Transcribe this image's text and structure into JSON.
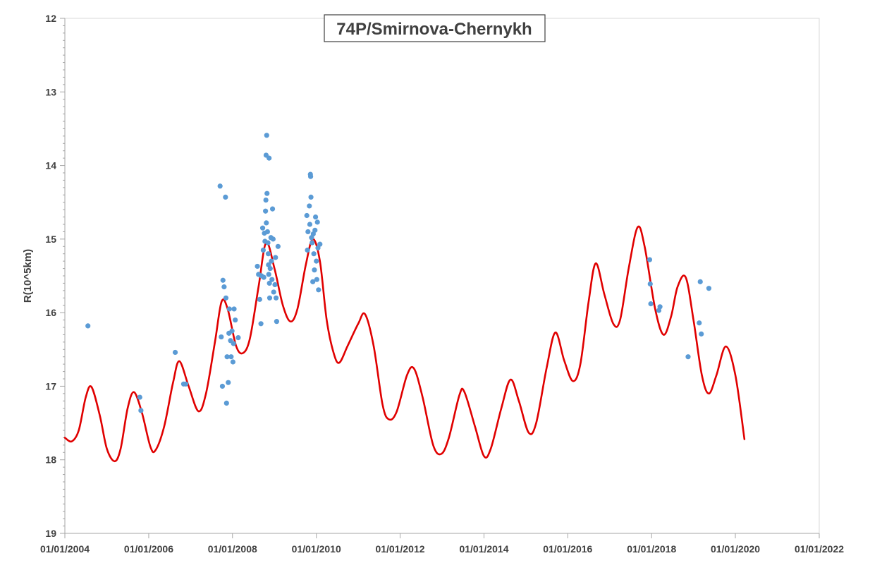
{
  "chart_data": {
    "type": "scatter",
    "title": "74P/Smirnova-Chernykh",
    "xlabel": "",
    "ylabel": "R(10^5km)",
    "x_axis": {
      "type": "date",
      "range": [
        "2004-01-01",
        "2022-01-01"
      ],
      "tick_labels": [
        "01/01/2004",
        "01/01/2006",
        "01/01/2008",
        "01/01/2010",
        "01/01/2012",
        "01/01/2014",
        "01/01/2016",
        "01/01/2018",
        "01/01/2020",
        "01/01/2022"
      ]
    },
    "y_axis": {
      "range": [
        12,
        19
      ],
      "inverted": true,
      "tick_labels": [
        "12",
        "13",
        "14",
        "15",
        "16",
        "17",
        "18",
        "19"
      ]
    },
    "grid": false,
    "legend": "none",
    "colors": {
      "curve": "#e00000",
      "points": "#5b9bd5",
      "axis": "#a6a6a6",
      "text": "#404040"
    },
    "series": [
      {
        "kind": "line",
        "points": [
          [
            "2004-01-01",
            17.7
          ],
          [
            "2004-03-01",
            17.75
          ],
          [
            "2004-05-01",
            17.6
          ],
          [
            "2004-07-01",
            17.15
          ],
          [
            "2004-08-20",
            17.01
          ],
          [
            "2004-11-01",
            17.4
          ],
          [
            "2005-01-01",
            17.85
          ],
          [
            "2005-03-10",
            18.02
          ],
          [
            "2005-05-01",
            17.85
          ],
          [
            "2005-07-01",
            17.3
          ],
          [
            "2005-08-25",
            17.08
          ],
          [
            "2005-11-01",
            17.35
          ],
          [
            "2006-01-15",
            17.82
          ],
          [
            "2006-03-01",
            17.87
          ],
          [
            "2006-05-15",
            17.55
          ],
          [
            "2006-08-01",
            16.95
          ],
          [
            "2006-09-25",
            16.66
          ],
          [
            "2006-12-15",
            17.0
          ],
          [
            "2007-03-10",
            17.34
          ],
          [
            "2007-05-15",
            17.1
          ],
          [
            "2007-08-01",
            16.4
          ],
          [
            "2007-09-28",
            15.85
          ],
          [
            "2007-11-20",
            15.95
          ],
          [
            "2008-02-01",
            16.45
          ],
          [
            "2008-04-01",
            16.55
          ],
          [
            "2008-06-01",
            16.35
          ],
          [
            "2008-08-15",
            15.65
          ],
          [
            "2008-10-20",
            15.05
          ],
          [
            "2009-01-01",
            15.4
          ],
          [
            "2009-03-15",
            15.9
          ],
          [
            "2009-05-20",
            16.12
          ],
          [
            "2009-07-20",
            15.95
          ],
          [
            "2009-10-01",
            15.35
          ],
          [
            "2009-12-01",
            15.0
          ],
          [
            "2010-02-01",
            15.3
          ],
          [
            "2010-04-01",
            16.1
          ],
          [
            "2010-06-01",
            16.55
          ],
          [
            "2010-07-20",
            16.68
          ],
          [
            "2010-10-01",
            16.45
          ],
          [
            "2011-01-01",
            16.15
          ],
          [
            "2011-03-01",
            16.02
          ],
          [
            "2011-05-15",
            16.45
          ],
          [
            "2011-08-01",
            17.25
          ],
          [
            "2011-09-25",
            17.45
          ],
          [
            "2011-12-01",
            17.35
          ],
          [
            "2012-03-01",
            16.85
          ],
          [
            "2012-05-01",
            16.76
          ],
          [
            "2012-07-15",
            17.15
          ],
          [
            "2012-10-15",
            17.8
          ],
          [
            "2012-12-25",
            17.92
          ],
          [
            "2013-03-01",
            17.7
          ],
          [
            "2013-06-01",
            17.12
          ],
          [
            "2013-07-15",
            17.08
          ],
          [
            "2013-10-15",
            17.55
          ],
          [
            "2014-01-01",
            17.95
          ],
          [
            "2014-03-01",
            17.85
          ],
          [
            "2014-06-01",
            17.3
          ],
          [
            "2014-08-20",
            16.91
          ],
          [
            "2014-11-01",
            17.2
          ],
          [
            "2015-01-25",
            17.63
          ],
          [
            "2015-04-01",
            17.5
          ],
          [
            "2015-07-01",
            16.75
          ],
          [
            "2015-09-15",
            16.27
          ],
          [
            "2015-12-01",
            16.65
          ],
          [
            "2016-02-15",
            16.93
          ],
          [
            "2016-04-20",
            16.7
          ],
          [
            "2016-07-01",
            15.85
          ],
          [
            "2016-09-01",
            15.33
          ],
          [
            "2016-11-15",
            15.75
          ],
          [
            "2017-02-01",
            16.15
          ],
          [
            "2017-04-01",
            16.1
          ],
          [
            "2017-06-15",
            15.4
          ],
          [
            "2017-09-01",
            14.84
          ],
          [
            "2017-11-01",
            15.1
          ],
          [
            "2018-02-01",
            15.95
          ],
          [
            "2018-04-15",
            16.3
          ],
          [
            "2018-06-20",
            16.05
          ],
          [
            "2018-08-15",
            15.65
          ],
          [
            "2018-10-25",
            15.52
          ],
          [
            "2019-01-01",
            16.1
          ],
          [
            "2019-03-15",
            16.85
          ],
          [
            "2019-05-15",
            17.1
          ],
          [
            "2019-07-20",
            16.85
          ],
          [
            "2019-10-10",
            16.46
          ],
          [
            "2020-01-01",
            16.85
          ],
          [
            "2020-03-20",
            17.72
          ]
        ]
      },
      {
        "kind": "scatter",
        "points": [
          [
            "2004-07-20",
            16.18
          ],
          [
            "2005-10-15",
            17.15
          ],
          [
            "2005-10-25",
            17.33
          ],
          [
            "2006-08-20",
            16.54
          ],
          [
            "2006-11-01",
            16.97
          ],
          [
            "2006-11-20",
            16.97
          ],
          [
            "2007-09-15",
            14.28
          ],
          [
            "2007-09-25",
            16.33
          ],
          [
            "2007-10-05",
            17.0
          ],
          [
            "2007-10-10",
            15.56
          ],
          [
            "2007-10-20",
            15.65
          ],
          [
            "2007-11-01",
            14.43
          ],
          [
            "2007-11-05",
            15.8
          ],
          [
            "2007-11-10",
            17.23
          ],
          [
            "2007-11-15",
            16.6
          ],
          [
            "2007-11-25",
            16.95
          ],
          [
            "2007-12-01",
            16.28
          ],
          [
            "2007-12-05",
            15.95
          ],
          [
            "2007-12-15",
            16.38
          ],
          [
            "2007-12-20",
            16.6
          ],
          [
            "2007-12-28",
            16.25
          ],
          [
            "2008-01-05",
            16.67
          ],
          [
            "2008-01-10",
            16.42
          ],
          [
            "2008-01-15",
            15.95
          ],
          [
            "2008-01-25",
            16.1
          ],
          [
            "2008-02-20",
            16.34
          ],
          [
            "2008-08-05",
            15.37
          ],
          [
            "2008-08-15",
            15.48
          ],
          [
            "2008-08-25",
            15.82
          ],
          [
            "2008-09-05",
            16.15
          ],
          [
            "2008-09-10",
            15.5
          ],
          [
            "2008-09-20",
            14.85
          ],
          [
            "2008-09-25",
            15.15
          ],
          [
            "2008-09-30",
            15.52
          ],
          [
            "2008-10-05",
            14.92
          ],
          [
            "2008-10-10",
            15.03
          ],
          [
            "2008-10-15",
            14.62
          ],
          [
            "2008-10-18",
            14.47
          ],
          [
            "2008-10-20",
            13.86
          ],
          [
            "2008-10-22",
            14.78
          ],
          [
            "2008-10-25",
            13.59
          ],
          [
            "2008-10-28",
            14.38
          ],
          [
            "2008-11-01",
            14.9
          ],
          [
            "2008-11-05",
            15.05
          ],
          [
            "2008-11-08",
            15.2
          ],
          [
            "2008-11-10",
            15.35
          ],
          [
            "2008-11-12",
            15.48
          ],
          [
            "2008-11-15",
            13.9
          ],
          [
            "2008-11-18",
            15.6
          ],
          [
            "2008-11-20",
            15.8
          ],
          [
            "2008-11-25",
            15.4
          ],
          [
            "2008-12-01",
            14.98
          ],
          [
            "2008-12-05",
            15.3
          ],
          [
            "2008-12-10",
            15.55
          ],
          [
            "2008-12-15",
            14.59
          ],
          [
            "2008-12-20",
            15.0
          ],
          [
            "2008-12-25",
            15.72
          ],
          [
            "2009-01-05",
            15.62
          ],
          [
            "2009-01-10",
            15.25
          ],
          [
            "2009-01-15",
            15.8
          ],
          [
            "2009-01-20",
            16.12
          ],
          [
            "2009-02-01",
            15.1
          ],
          [
            "2009-10-10",
            14.68
          ],
          [
            "2009-10-15",
            15.15
          ],
          [
            "2009-10-20",
            14.9
          ],
          [
            "2009-11-01",
            14.55
          ],
          [
            "2009-11-05",
            14.8
          ],
          [
            "2009-11-10",
            14.12
          ],
          [
            "2009-11-12",
            14.15
          ],
          [
            "2009-11-15",
            14.43
          ],
          [
            "2009-11-20",
            14.98
          ],
          [
            "2009-11-25",
            15.05
          ],
          [
            "2009-12-01",
            15.58
          ],
          [
            "2009-12-05",
            14.93
          ],
          [
            "2009-12-10",
            15.2
          ],
          [
            "2009-12-15",
            15.42
          ],
          [
            "2009-12-20",
            14.88
          ],
          [
            "2009-12-25",
            14.7
          ],
          [
            "2010-01-01",
            15.3
          ],
          [
            "2010-01-05",
            15.55
          ],
          [
            "2010-01-10",
            14.77
          ],
          [
            "2010-01-15",
            15.12
          ],
          [
            "2010-01-20",
            15.69
          ],
          [
            "2010-02-01",
            15.07
          ],
          [
            "2017-12-15",
            15.28
          ],
          [
            "2017-12-20",
            15.61
          ],
          [
            "2017-12-25",
            15.88
          ],
          [
            "2018-03-05",
            15.97
          ],
          [
            "2018-03-15",
            15.92
          ],
          [
            "2018-11-15",
            16.6
          ],
          [
            "2019-02-20",
            16.14
          ],
          [
            "2019-03-01",
            15.58
          ],
          [
            "2019-03-10",
            16.29
          ],
          [
            "2019-05-15",
            15.67
          ]
        ]
      }
    ]
  }
}
